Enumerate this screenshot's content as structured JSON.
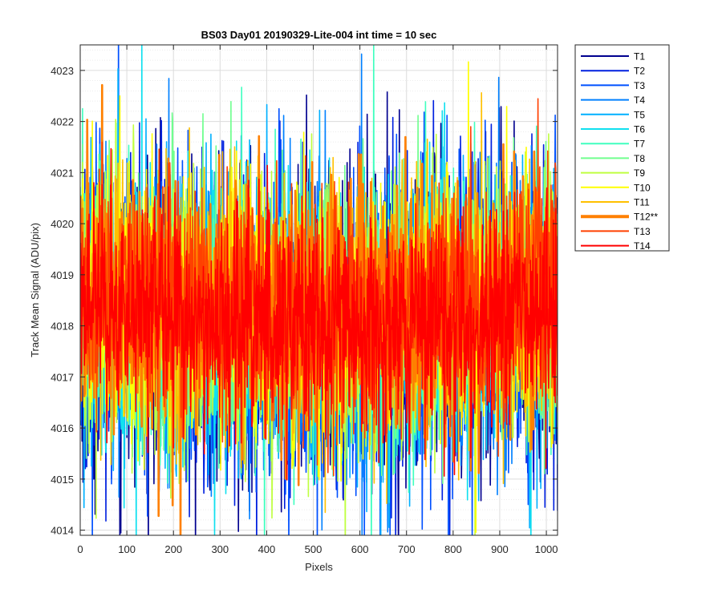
{
  "chart_data": {
    "type": "line",
    "title": "BS03 Day01 20190329-Lite-004 int time = 10 sec",
    "xlabel": "Pixels",
    "ylabel": "Track Mean Signal (ADU/pix)",
    "xlim": [
      0,
      1024
    ],
    "ylim": [
      4013.9,
      4023.5
    ],
    "xticks": [
      0,
      100,
      200,
      300,
      400,
      500,
      600,
      700,
      800,
      900,
      1000
    ],
    "yticks": [
      4014,
      4015,
      4016,
      4017,
      4018,
      4019,
      4020,
      4021,
      4022,
      4023
    ],
    "grid": true,
    "minor_grid_y": true,
    "legend_position": "outside-top-right",
    "points_per_series": 1024,
    "series": [
      {
        "name": "T1",
        "color": "#00008f",
        "mean": 4017.9,
        "sd": 1.55,
        "highlight": false
      },
      {
        "name": "T2",
        "color": "#0020df",
        "mean": 4017.9,
        "sd": 1.5,
        "highlight": false
      },
      {
        "name": "T3",
        "color": "#0050ff",
        "mean": 4017.9,
        "sd": 1.45,
        "highlight": false
      },
      {
        "name": "T4",
        "color": "#0080ff",
        "mean": 4018.0,
        "sd": 1.4,
        "highlight": false
      },
      {
        "name": "T5",
        "color": "#00b0ff",
        "mean": 4018.0,
        "sd": 1.4,
        "highlight": false
      },
      {
        "name": "T6",
        "color": "#10e0ef",
        "mean": 4018.1,
        "sd": 1.35,
        "highlight": false
      },
      {
        "name": "T7",
        "color": "#40ffbf",
        "mean": 4018.1,
        "sd": 1.35,
        "highlight": false
      },
      {
        "name": "T8",
        "color": "#70ff8f",
        "mean": 4018.2,
        "sd": 1.3,
        "highlight": false
      },
      {
        "name": "T9",
        "color": "#bfff40",
        "mean": 4018.2,
        "sd": 1.3,
        "highlight": false
      },
      {
        "name": "T10",
        "color": "#ffff00",
        "mean": 4018.2,
        "sd": 1.3,
        "highlight": false
      },
      {
        "name": "T11",
        "color": "#ffc000",
        "mean": 4018.2,
        "sd": 1.25,
        "highlight": false
      },
      {
        "name": "T12**",
        "color": "#ff8000",
        "mean": 4018.4,
        "sd": 1.2,
        "highlight": true
      },
      {
        "name": "T13",
        "color": "#ff4000",
        "mean": 4018.3,
        "sd": 1.15,
        "highlight": false
      },
      {
        "name": "T14",
        "color": "#ff0000",
        "mean": 4018.0,
        "sd": 1.05,
        "highlight": false
      }
    ]
  }
}
